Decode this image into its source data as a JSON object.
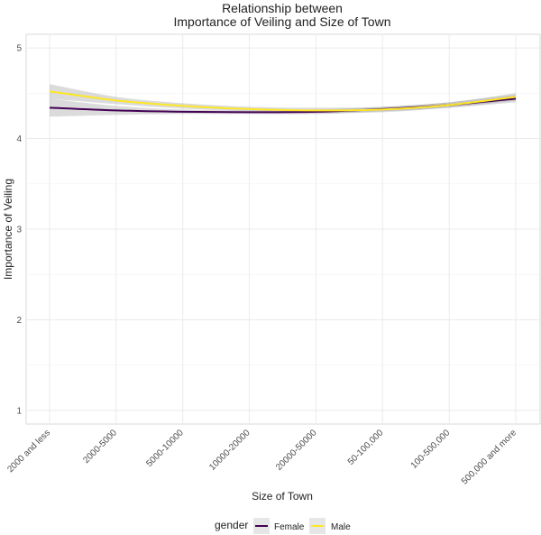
{
  "chart_data": {
    "type": "line",
    "title_line1": "Relationship between",
    "title_line2": "Importance of Veiling and Size of Town",
    "xlabel": "Size of Town",
    "ylabel": "Importance of Veiling",
    "categories": [
      "2000 and less",
      "2000-5000",
      "5000-10000",
      "10000-20000",
      "20000-50000",
      "50-100,000",
      "100-500,000",
      "500,000 and more"
    ],
    "y_ticks": [
      1,
      2,
      3,
      4,
      5
    ],
    "ylim": [
      0.85,
      5.15
    ],
    "grid": true,
    "legend": {
      "title": "gender",
      "placement": "bottom",
      "entries": [
        "Female",
        "Male"
      ]
    },
    "series": [
      {
        "name": "Female",
        "color": "#440154",
        "values": [
          4.34,
          4.31,
          4.295,
          4.29,
          4.295,
          4.325,
          4.37,
          4.44
        ],
        "ci_lower": [
          4.24,
          4.26,
          4.27,
          4.27,
          4.27,
          4.3,
          4.34,
          4.4
        ],
        "ci_upper": [
          4.44,
          4.36,
          4.32,
          4.31,
          4.32,
          4.35,
          4.4,
          4.48
        ]
      },
      {
        "name": "Male",
        "color": "#fde725",
        "values": [
          4.52,
          4.42,
          4.36,
          4.325,
          4.31,
          4.32,
          4.37,
          4.46
        ],
        "ci_lower": [
          4.44,
          4.38,
          4.33,
          4.3,
          4.28,
          4.29,
          4.34,
          4.42
        ],
        "ci_upper": [
          4.6,
          4.46,
          4.39,
          4.35,
          4.34,
          4.35,
          4.4,
          4.5
        ]
      }
    ]
  }
}
